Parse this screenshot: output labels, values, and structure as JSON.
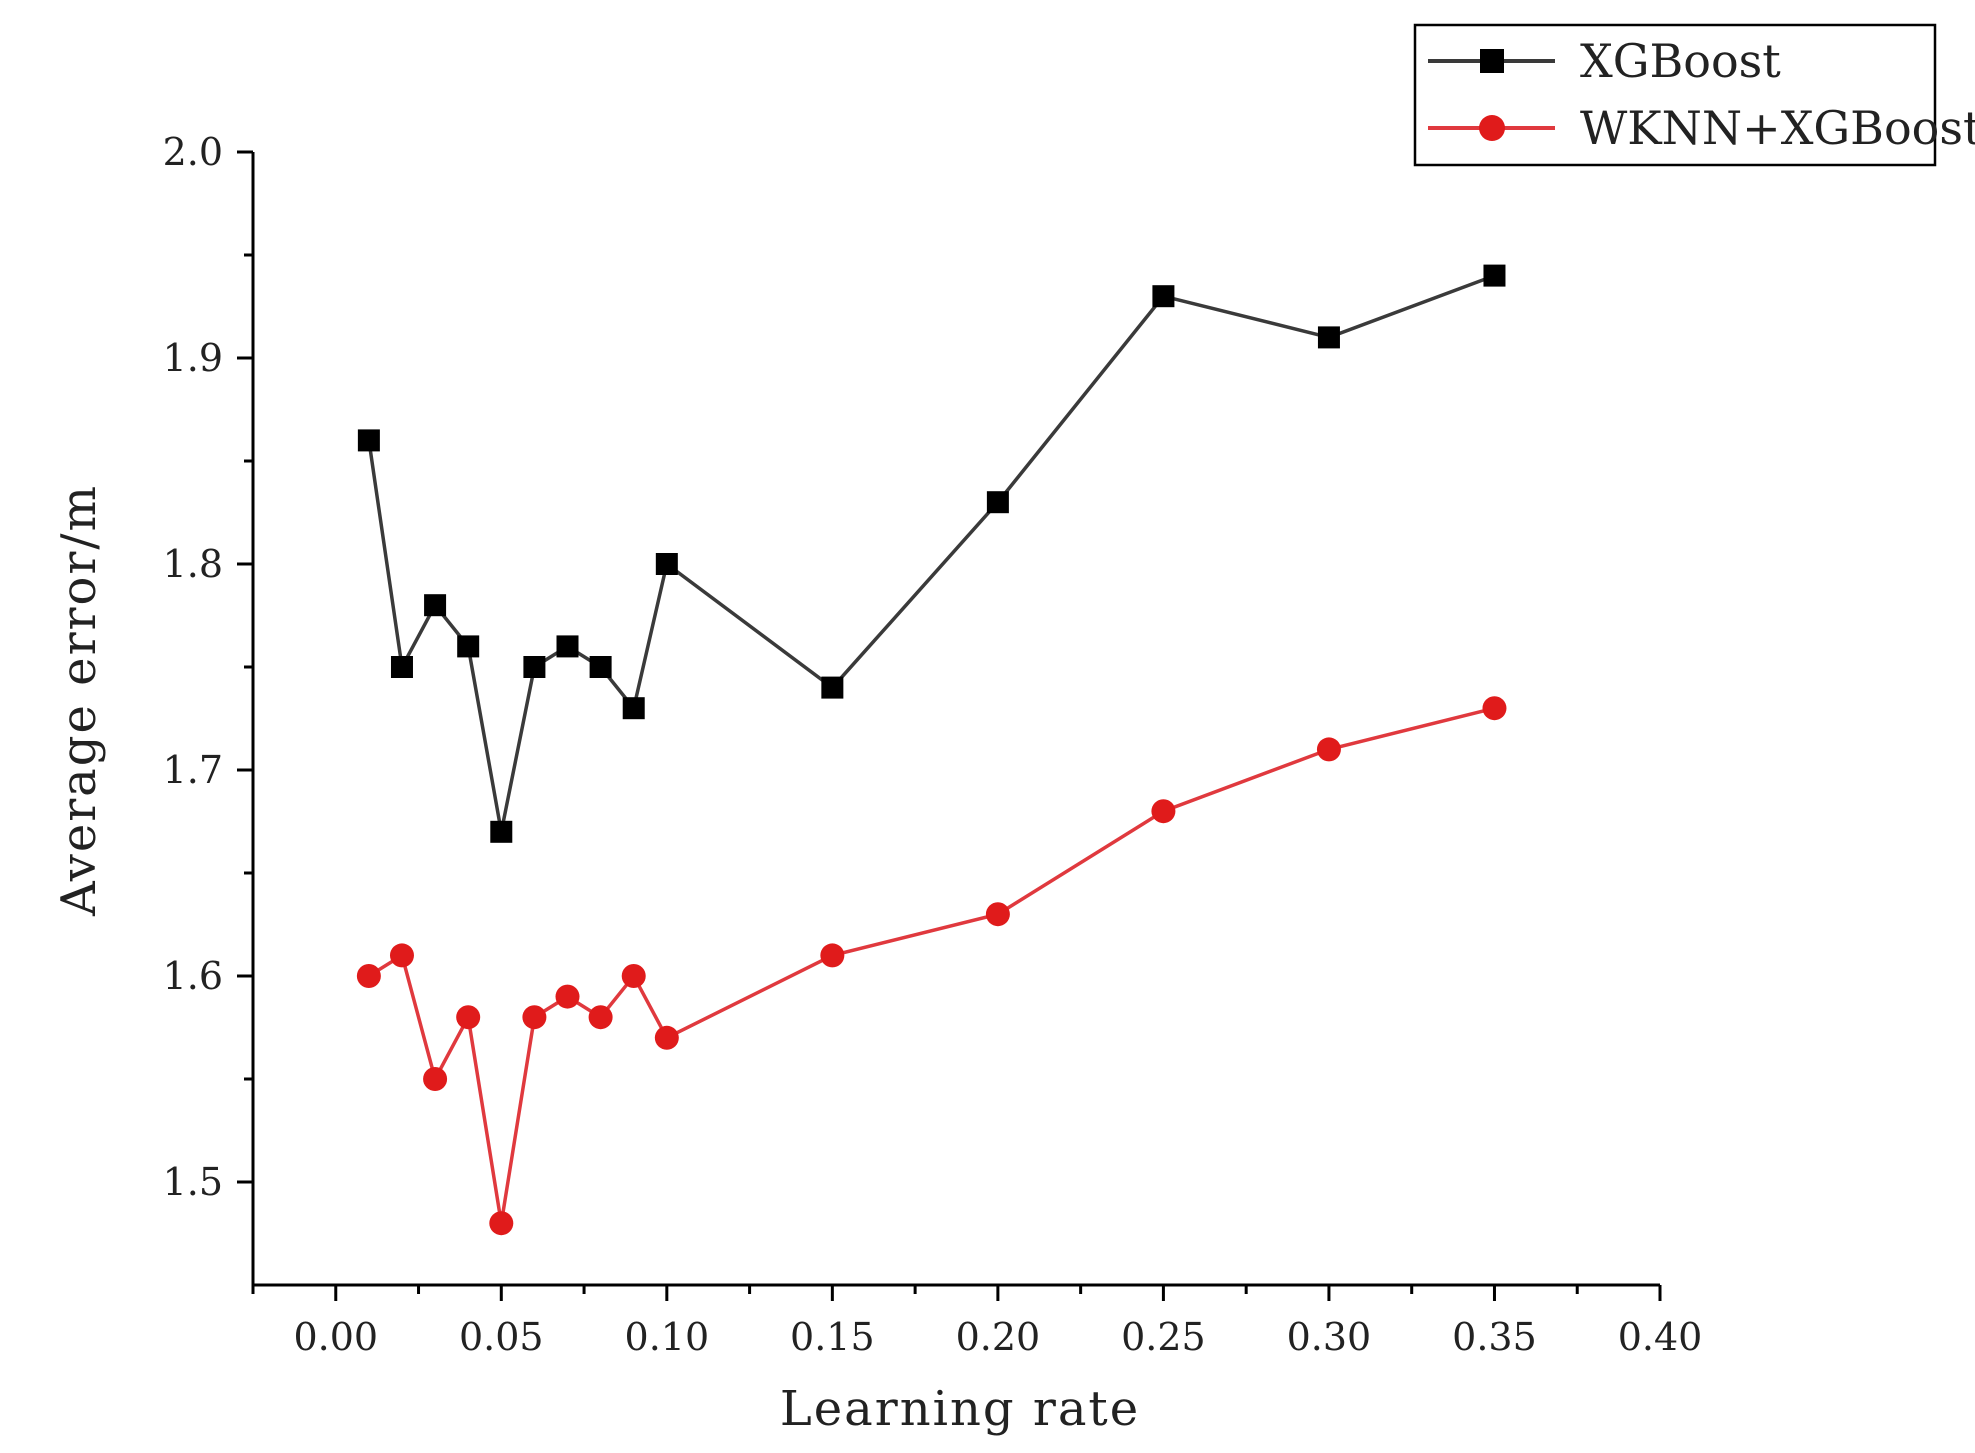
{
  "chart_data": {
    "type": "line",
    "title": "",
    "xlabel": "Learning rate",
    "ylabel": "Average error/m",
    "xlim": [
      -0.025,
      0.4
    ],
    "ylim": [
      1.45,
      2.0
    ],
    "x_ticks": [
      0.0,
      0.05,
      0.1,
      0.15,
      0.2,
      0.25,
      0.3,
      0.35,
      0.4
    ],
    "x_tick_labels": [
      "0.00",
      "0.05",
      "0.10",
      "0.15",
      "0.20",
      "0.25",
      "0.30",
      "0.35",
      "0.40"
    ],
    "y_ticks": [
      1.5,
      1.6,
      1.7,
      1.8,
      1.9,
      2.0
    ],
    "y_tick_labels": [
      "1.5",
      "1.6",
      "1.7",
      "1.8",
      "1.9",
      "2.0"
    ],
    "grid": false,
    "legend_position": "top-right",
    "x": [
      0.01,
      0.02,
      0.03,
      0.04,
      0.05,
      0.06,
      0.07,
      0.08,
      0.09,
      0.1,
      0.15,
      0.2,
      0.25,
      0.3,
      0.35
    ],
    "series": [
      {
        "name": "XGBoost",
        "color": "#3a3a3a",
        "marker": "square",
        "marker_color": "#000000",
        "values": [
          1.86,
          1.75,
          1.78,
          1.76,
          1.67,
          1.75,
          1.76,
          1.75,
          1.73,
          1.8,
          1.74,
          1.83,
          1.93,
          1.91,
          1.94
        ]
      },
      {
        "name": "WKNN+XGBoost",
        "color": "#e0393e",
        "marker": "circle",
        "marker_color": "#e01b1b",
        "values": [
          1.6,
          1.61,
          1.55,
          1.58,
          1.48,
          1.58,
          1.59,
          1.58,
          1.6,
          1.57,
          1.61,
          1.63,
          1.68,
          1.71,
          1.73
        ]
      }
    ]
  }
}
